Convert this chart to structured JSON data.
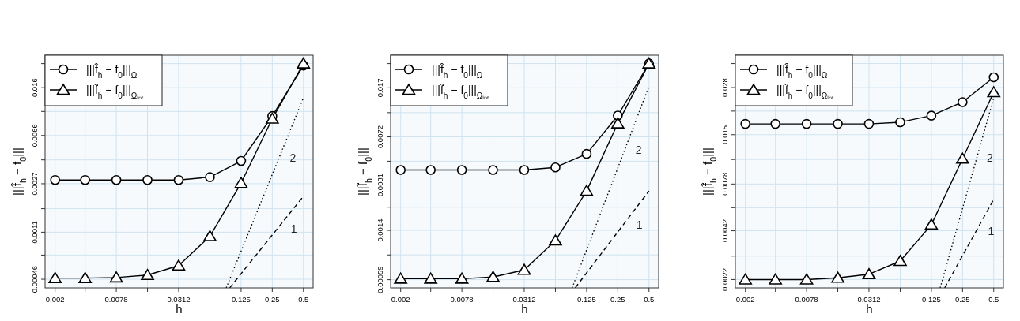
{
  "chart_data": [
    {
      "type": "line",
      "xlabel": "h",
      "ylabel": "|||f̂$_{h}$ − f$_{0}$|||",
      "log": "xy",
      "grid": true,
      "legend": "top left",
      "xlim": [
        0.0016,
        0.62
      ],
      "ylim": [
        0.000392,
        0.0292
      ],
      "xticks": [
        0.002,
        {
          "value": 0.0039,
          "label": null
        },
        0.0078,
        {
          "value": 0.0156,
          "label": null
        },
        0.0312,
        {
          "value": 0.0625,
          "label": null
        },
        0.125,
        0.25,
        0.5
      ],
      "yticks": [
        0.00046,
        {
          "value": 0.00072,
          "label": null
        },
        0.0011,
        {
          "value": 0.0017,
          "label": null
        },
        0.0027,
        {
          "value": 0.0042,
          "label": null
        },
        0.0066,
        {
          "value": 0.0103,
          "label": null
        },
        0.016,
        {
          "value": 0.025,
          "label": null
        }
      ],
      "x": [
        0.002,
        0.0039,
        0.0078,
        0.0156,
        0.0312,
        0.0625,
        0.125,
        0.25,
        0.5
      ],
      "series": [
        {
          "name": "|||f̂$_{h}$ − f$_{0}$|||$_{Ω}$",
          "color": "#000000",
          "marker": "circle",
          "values": [
            0.00289,
            0.00289,
            0.00289,
            0.00289,
            0.00289,
            0.00305,
            0.00412,
            0.00946,
            0.0241
          ]
        },
        {
          "name": "|||f̂$_{h}$ − f$_{0}$|||$_{Ωᵢₙₜ}$",
          "color": "#000000",
          "marker": "triangle",
          "values": [
            0.00047,
            0.00047,
            0.000475,
            0.000497,
            0.000592,
            0.00102,
            0.00273,
            0.009,
            0.025
          ]
        },
        {
          "color": "#000000",
          "marker": "none",
          "line_style": "dotted",
          "x": [
            0.0898,
            0.5
          ],
          "values": [
            0.000392,
            0.0133
          ]
        },
        {
          "color": "#000000",
          "marker": "none",
          "line_style": "dashed",
          "x": [
            0.097,
            0.5
          ],
          "values": [
            0.000392,
            0.00214
          ]
        }
      ],
      "annotations": [
        "2",
        "1"
      ]
    },
    {
      "type": "line",
      "xlabel": "h",
      "ylabel": "|||f̂$_{h}$ − f$_{0}$|||",
      "log": "xy",
      "grid": true,
      "legend": "top left",
      "xlim": [
        0.0016,
        0.62
      ],
      "ylim": [
        0.000511,
        0.0301
      ],
      "xticks": [
        0.002,
        {
          "value": 0.0039,
          "label": null
        },
        0.0078,
        {
          "value": 0.0156,
          "label": null
        },
        0.0312,
        {
          "value": 0.0625,
          "label": null
        },
        0.125,
        0.25,
        0.5
      ],
      "yticks": [
        0.00059,
        {
          "value": 0.00091,
          "label": null
        },
        0.0014,
        {
          "value": 0.0021,
          "label": null
        },
        0.0031,
        {
          "value": 0.0047,
          "label": null
        },
        0.0072,
        {
          "value": 0.011,
          "label": null
        },
        0.017,
        {
          "value": 0.026,
          "label": null
        }
      ],
      "x": [
        0.002,
        0.0039,
        0.0078,
        0.0156,
        0.0312,
        0.0625,
        0.125,
        0.25,
        0.5
      ],
      "series": [
        {
          "name": "|||f̂$_{h}$ − f$_{0}$|||$_{Ω}$",
          "color": "#000000",
          "marker": "circle",
          "values": [
            0.00403,
            0.00403,
            0.00403,
            0.00403,
            0.00403,
            0.00422,
            0.00534,
            0.01046,
            0.026
          ]
        },
        {
          "name": "|||f̂$_{h}$ − f$_{0}$|||$_{Ωᵢₙₜ}$",
          "color": "#000000",
          "marker": "triangle",
          "values": [
            0.0006,
            0.0006,
            0.0006,
            0.000618,
            0.0007,
            0.00117,
            0.00279,
            0.0091,
            0.026
          ]
        },
        {
          "color": "#000000",
          "marker": "none",
          "line_style": "dotted",
          "x": [
            0.0906,
            0.5
          ],
          "values": [
            0.000511,
            0.0175
          ]
        },
        {
          "color": "#000000",
          "marker": "none",
          "line_style": "dashed",
          "x": [
            0.097,
            0.5
          ],
          "values": [
            0.000511,
            0.00279
          ]
        }
      ],
      "annotations": [
        "2",
        "1"
      ]
    },
    {
      "type": "line",
      "xlabel": "h",
      "ylabel": "|||f̂$_{h}$ − f$_{0}$|||",
      "log": "xy",
      "grid": true,
      "legend": "top left",
      "xlim": [
        0.0016,
        0.62
      ],
      "ylim": [
        0.00197,
        0.043
      ],
      "xticks": [
        0.002,
        {
          "value": 0.0039,
          "label": null
        },
        0.0078,
        {
          "value": 0.0156,
          "label": null
        },
        0.0312,
        {
          "value": 0.0625,
          "label": null
        },
        0.125,
        0.25,
        0.5
      ],
      "yticks": [
        0.0022,
        {
          "value": 0.003,
          "label": null
        },
        0.0042,
        {
          "value": 0.0057,
          "label": null
        },
        0.0078,
        {
          "value": 0.0108,
          "label": null
        },
        0.015,
        {
          "value": 0.0205,
          "label": null
        },
        0.028,
        {
          "value": 0.0385,
          "label": null
        }
      ],
      "x": [
        0.002,
        0.0039,
        0.0078,
        0.0156,
        0.0312,
        0.0625,
        0.125,
        0.25,
        0.5
      ],
      "series": [
        {
          "name": "|||f̂$_{h}$ − f$_{0}$|||$_{Ω}$",
          "color": "#000000",
          "marker": "circle",
          "values": [
            0.0173,
            0.0173,
            0.0173,
            0.0173,
            0.0173,
            0.0177,
            0.0193,
            0.0231,
            0.0321
          ]
        },
        {
          "name": "|||f̂$_{h}$ − f$_{0}$|||$_{Ωᵢₙₜ}$",
          "color": "#000000",
          "marker": "triangle",
          "values": [
            0.0022,
            0.0022,
            0.0022,
            0.00225,
            0.00236,
            0.00281,
            0.00455,
            0.0109,
            0.0263
          ]
        },
        {
          "color": "#000000",
          "marker": "none",
          "line_style": "dotted",
          "x": [
            0.152,
            0.5
          ],
          "values": [
            0.00197,
            0.0245
          ]
        },
        {
          "color": "#000000",
          "marker": "none",
          "line_style": "dashed",
          "x": [
            0.168,
            0.5
          ],
          "values": [
            0.00197,
            0.00637
          ]
        }
      ],
      "annotations": [
        "2",
        "1"
      ]
    }
  ]
}
